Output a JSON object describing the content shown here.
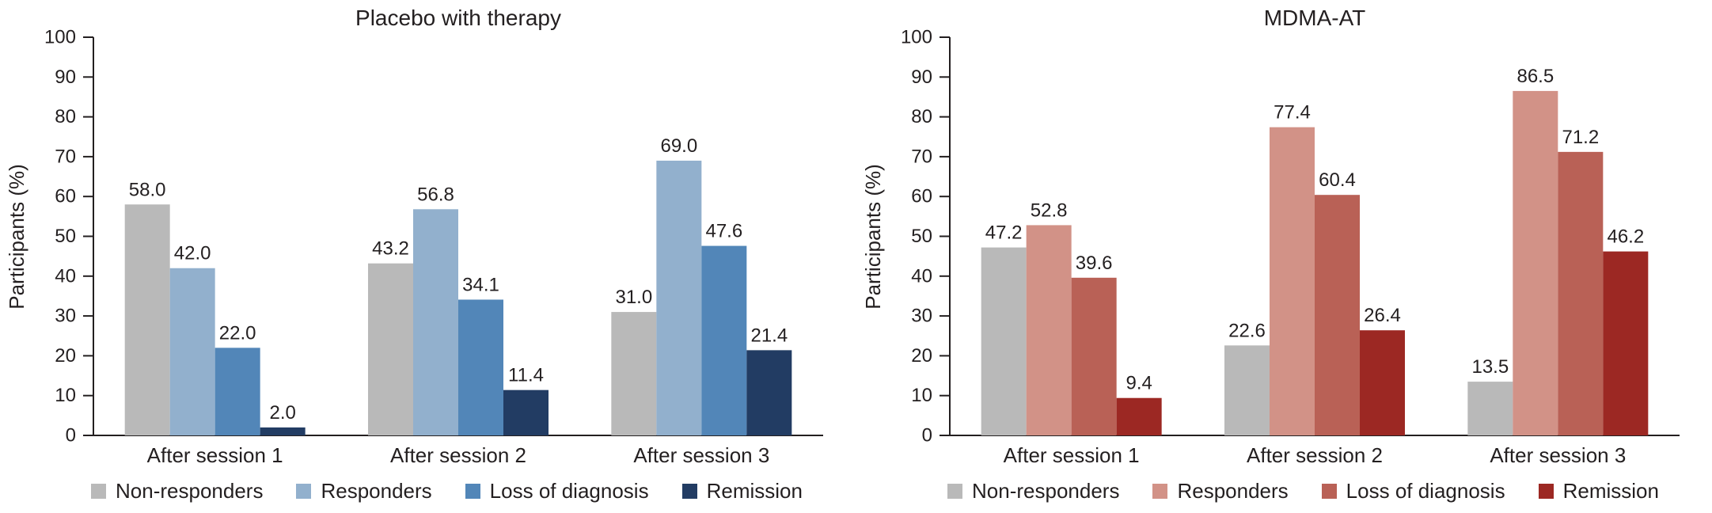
{
  "figure": {
    "background": "#ffffff",
    "text_color": "#231f20",
    "axis_color": "#231f20"
  },
  "chart_data": [
    {
      "type": "bar",
      "title": "Placebo with therapy",
      "xlabel": "",
      "ylabel": "Participants (%)",
      "ylim": [
        0,
        100
      ],
      "yticks": [
        0,
        10,
        20,
        30,
        40,
        50,
        60,
        70,
        80,
        90,
        100
      ],
      "grid": false,
      "legend_position": "bottom",
      "categories": [
        "After session 1",
        "After session 2",
        "After session 3"
      ],
      "series": [
        {
          "name": "Non-responders",
          "color": "#b9b9b9",
          "values": [
            58.0,
            43.2,
            31.0
          ],
          "labels": [
            "58.0",
            "43.2",
            "31.0"
          ]
        },
        {
          "name": "Responders",
          "color": "#92b0cd",
          "values": [
            42.0,
            56.8,
            69.0
          ],
          "labels": [
            "42.0",
            "56.8",
            "69.0"
          ]
        },
        {
          "name": "Loss of diagnosis",
          "color": "#5286b8",
          "values": [
            22.0,
            34.1,
            47.6
          ],
          "labels": [
            "22.0",
            "34.1",
            "47.6"
          ]
        },
        {
          "name": "Remission",
          "color": "#223c63",
          "values": [
            2.0,
            11.4,
            21.4
          ],
          "labels": [
            "2.0",
            "11.4",
            "21.4"
          ]
        }
      ]
    },
    {
      "type": "bar",
      "title": "MDMA-AT",
      "xlabel": "",
      "ylabel": "Participants (%)",
      "ylim": [
        0,
        100
      ],
      "yticks": [
        0,
        10,
        20,
        30,
        40,
        50,
        60,
        70,
        80,
        90,
        100
      ],
      "grid": false,
      "legend_position": "bottom",
      "categories": [
        "After session 1",
        "After session 2",
        "After session 3"
      ],
      "series": [
        {
          "name": "Non-responders",
          "color": "#b9b9b9",
          "values": [
            47.2,
            22.6,
            13.5
          ],
          "labels": [
            "47.2",
            "22.6",
            "13.5"
          ]
        },
        {
          "name": "Responders",
          "color": "#d29287",
          "values": [
            52.8,
            77.4,
            86.5
          ],
          "labels": [
            "52.8",
            "77.4",
            "86.5"
          ]
        },
        {
          "name": "Loss of diagnosis",
          "color": "#b96156",
          "values": [
            39.6,
            60.4,
            71.2
          ],
          "labels": [
            "39.6",
            "60.4",
            "71.2"
          ]
        },
        {
          "name": "Remission",
          "color": "#9c2823",
          "values": [
            9.4,
            26.4,
            46.2
          ],
          "labels": [
            "9.4",
            "26.4",
            "46.2"
          ]
        }
      ]
    }
  ]
}
